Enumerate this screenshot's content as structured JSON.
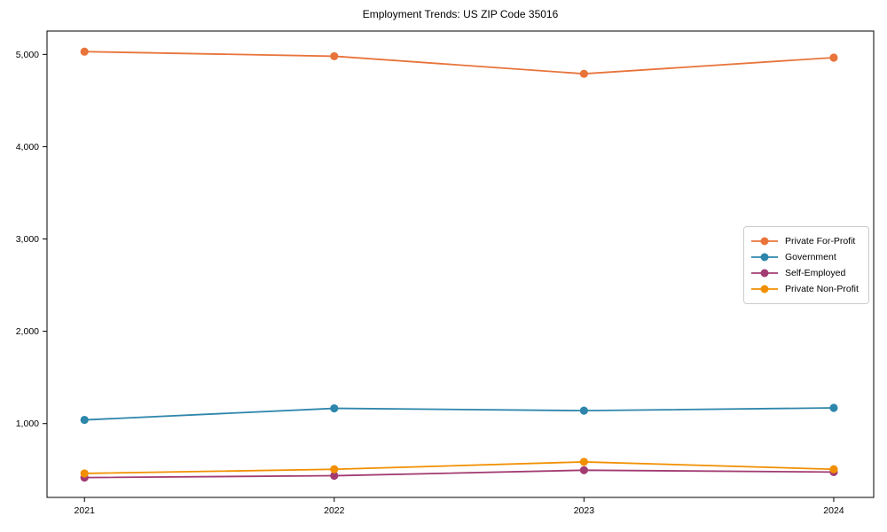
{
  "title": "Employment Trends: US ZIP Code 35016",
  "colors": {
    "private_for_profit": "#E8743B",
    "government": "#2E86AB",
    "self_employed": "#A23B72",
    "private_non_profit": "#F18F01",
    "axis": "#000000",
    "legend_border": "#cccccc",
    "background": "#ffffff"
  },
  "chart_data": {
    "type": "line",
    "title": "Employment Trends: US ZIP Code 35016",
    "xlabel": "",
    "ylabel": "",
    "x": [
      2021,
      2022,
      2023,
      2024
    ],
    "x_tick_labels": [
      "2021",
      "2022",
      "2023",
      "2024"
    ],
    "series": [
      {
        "name": "Private For-Profit",
        "color": "#E8743B",
        "values": [
          5030,
          4980,
          4790,
          4965
        ]
      },
      {
        "name": "Government",
        "color": "#2E86AB",
        "values": [
          1040,
          1165,
          1140,
          1170
        ]
      },
      {
        "name": "Self-Employed",
        "color": "#A23B72",
        "values": [
          415,
          435,
          495,
          475
        ]
      },
      {
        "name": "Private Non-Profit",
        "color": "#F18F01",
        "values": [
          460,
          505,
          585,
          505
        ]
      }
    ],
    "yticks": [
      1000,
      2000,
      3000,
      4000,
      5000
    ],
    "y_tick_labels": [
      "1,000",
      "2,000",
      "3,000",
      "4,000",
      "5,000"
    ],
    "ylim": [
      200,
      5253
    ],
    "xlim": [
      2020.85,
      2024.16
    ],
    "grid": false,
    "legend_position": "center right",
    "marker": "circle"
  }
}
